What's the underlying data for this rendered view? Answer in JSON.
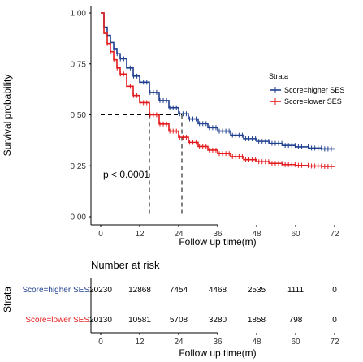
{
  "chart_data": {
    "type": "line",
    "subtype": "kaplan-meier",
    "xlabel": "Follow up time(m)",
    "ylabel": "Survival probability",
    "xlim": [
      0,
      72
    ],
    "ylim": [
      0,
      1
    ],
    "x_ticks": [
      0,
      12,
      24,
      36,
      48,
      60,
      72
    ],
    "y_ticks": [
      "0.00",
      "0.25",
      "0.50",
      "0.75",
      "1.00"
    ],
    "grid": false,
    "legend": {
      "title": "Strata",
      "position": "right",
      "entries": [
        "Score=higher SES",
        "Score=lower SES"
      ]
    },
    "annotation": "p < 0.0001",
    "median_line_y": 0.5,
    "medians": [
      25,
      15
    ],
    "series": [
      {
        "name": "Score=higher SES",
        "color": "#1f3f8f",
        "x": [
          0,
          1,
          2,
          3,
          4,
          5,
          6,
          8,
          10,
          12,
          15,
          18,
          21,
          24,
          27,
          30,
          33,
          36,
          40,
          44,
          48,
          52,
          56,
          60,
          64,
          68,
          72
        ],
        "y": [
          1.0,
          0.93,
          0.89,
          0.855,
          0.825,
          0.8,
          0.775,
          0.73,
          0.69,
          0.66,
          0.61,
          0.57,
          0.535,
          0.505,
          0.48,
          0.457,
          0.437,
          0.42,
          0.4,
          0.383,
          0.37,
          0.36,
          0.35,
          0.343,
          0.337,
          0.333,
          0.33
        ]
      },
      {
        "name": "Score=lower SES",
        "color": "#e31a1c",
        "x": [
          0,
          1,
          2,
          3,
          4,
          5,
          6,
          8,
          10,
          12,
          15,
          18,
          21,
          24,
          27,
          30,
          33,
          36,
          40,
          44,
          48,
          52,
          56,
          60,
          64,
          68,
          72
        ],
        "y": [
          1.0,
          0.9,
          0.85,
          0.81,
          0.77,
          0.73,
          0.7,
          0.64,
          0.595,
          0.56,
          0.5,
          0.455,
          0.42,
          0.39,
          0.365,
          0.345,
          0.327,
          0.31,
          0.295,
          0.28,
          0.27,
          0.262,
          0.256,
          0.252,
          0.249,
          0.247,
          0.245
        ]
      }
    ],
    "risk_table": {
      "title": "Number at risk",
      "ylabel": "Strata",
      "xlabel": "Follow up time(m)",
      "times": [
        0,
        12,
        24,
        36,
        48,
        60,
        72
      ],
      "rows": [
        {
          "label": "Score=higher SES",
          "color": "#1f3f8f",
          "values": [
            "20230",
            "12868",
            "7454",
            "4468",
            "2535",
            "1111",
            "0"
          ]
        },
        {
          "label": "Score=lower SES",
          "color": "#e31a1c",
          "values": [
            "20130",
            "10581",
            "5708",
            "3280",
            "1858",
            "798",
            "0"
          ]
        }
      ]
    }
  }
}
